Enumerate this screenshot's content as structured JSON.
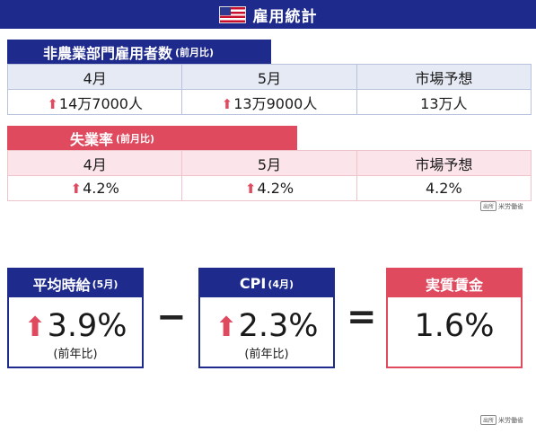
{
  "title": "雇用統計",
  "flag_icon": "us-flag-icon",
  "colors": {
    "blue": "#1e2a8c",
    "red": "#e04a5f"
  },
  "payrolls": {
    "label": "非農業部門雇用者数",
    "label_note": "(前月比)",
    "headers": [
      "4月",
      "5月",
      "市場予想"
    ],
    "values": [
      "14万7000人",
      "13万9000人",
      "13万人"
    ],
    "up_arrows": [
      true,
      true,
      false
    ]
  },
  "unemployment": {
    "label": "失業率",
    "label_note": "(前月比)",
    "headers": [
      "4月",
      "5月",
      "市場予想"
    ],
    "values": [
      "4.2%",
      "4.2%",
      "4.2%"
    ],
    "up_arrows": [
      true,
      true,
      false
    ]
  },
  "source_tag": "出所",
  "source_name": "米労働省",
  "equation": {
    "wage": {
      "label": "平均時給",
      "note": "(5月)",
      "value": "3.9%",
      "sub": "(前年比)"
    },
    "minus": "−",
    "cpi": {
      "label": "CPI",
      "note": "(4月)",
      "value": "2.3%",
      "sub": "(前年比)"
    },
    "equals": "=",
    "real_wage": {
      "label": "実質賃金",
      "value": "1.6%"
    }
  }
}
